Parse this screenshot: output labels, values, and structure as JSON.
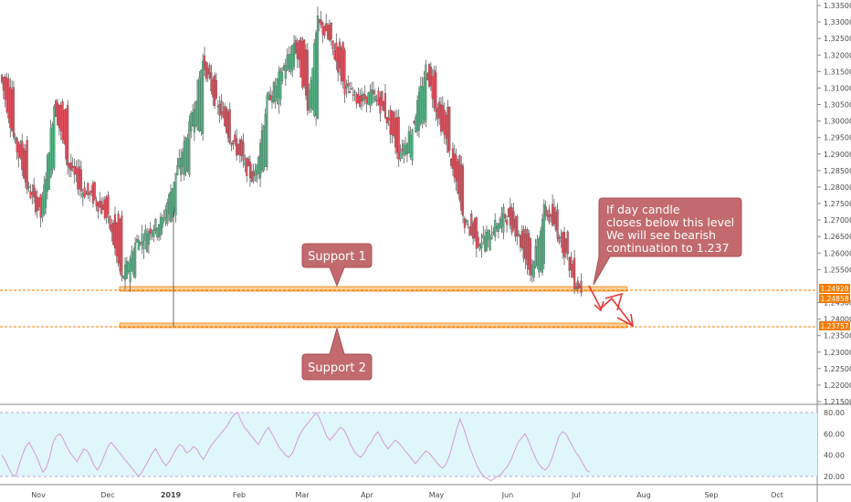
{
  "colors": {
    "up": "#53b987",
    "down": "#eb4d5c",
    "wick": "#4a4a4a",
    "support_zone": "#f7a541",
    "support_line": "#f57c00",
    "callout_fill": "#c26a6e",
    "callout_stroke": "#a84f54",
    "arrow": "#e53935",
    "rsi_line": "#d69bd4",
    "rsi_band": "#dff6fb"
  },
  "chart_data": {
    "type": "candlestick",
    "instrument_quote_currency_note": "",
    "x_tick_labels": [
      "Nov",
      "Dec",
      "2019",
      "Feb",
      "Mar",
      "Apr",
      "May",
      "Jun",
      "Jul",
      "Aug",
      "Sep",
      "Oct"
    ],
    "y_tick_labels": [
      "1.33500",
      "1.33000",
      "1.32500",
      "1.32000",
      "1.31500",
      "1.31000",
      "1.30500",
      "1.30000",
      "1.29500",
      "1.29000",
      "1.28500",
      "1.28000",
      "1.27500",
      "1.27000",
      "1.26500",
      "1.26000",
      "1.25500",
      "1.24500",
      "1.24000",
      "1.23500",
      "1.23000",
      "1.22500",
      "1.22000",
      "1.21500"
    ],
    "ylim": [
      1.213,
      1.3365
    ],
    "ohlc_daily_approx": [
      {
        "t": 0,
        "o": 1.312,
        "h": 1.316,
        "l": 1.3095,
        "c": 1.314
      },
      {
        "t": 8,
        "o": 1.31,
        "h": 1.311,
        "l": 1.29,
        "c": 1.295
      },
      {
        "t": 16,
        "o": 1.292,
        "h": 1.298,
        "l": 1.274,
        "c": 1.28
      },
      {
        "t": 24,
        "o": 1.277,
        "h": 1.29,
        "l": 1.27,
        "c": 1.271
      },
      {
        "t": 32,
        "o": 1.29,
        "h": 1.308,
        "l": 1.288,
        "c": 1.305
      },
      {
        "t": 40,
        "o": 1.305,
        "h": 1.308,
        "l": 1.284,
        "c": 1.287
      },
      {
        "t": 48,
        "o": 1.285,
        "h": 1.29,
        "l": 1.275,
        "c": 1.279
      },
      {
        "t": 56,
        "o": 1.28,
        "h": 1.284,
        "l": 1.272,
        "c": 1.276
      },
      {
        "t": 64,
        "o": 1.276,
        "h": 1.278,
        "l": 1.266,
        "c": 1.27
      },
      {
        "t": 72,
        "o": 1.27,
        "h": 1.272,
        "l": 1.25,
        "c": 1.252
      },
      {
        "t": 80,
        "o": 1.254,
        "h": 1.265,
        "l": 1.248,
        "c": 1.263
      },
      {
        "t": 88,
        "o": 1.262,
        "h": 1.272,
        "l": 1.26,
        "c": 1.267
      },
      {
        "t": 96,
        "o": 1.266,
        "h": 1.274,
        "l": 1.238,
        "c": 1.27
      },
      {
        "t": 104,
        "o": 1.272,
        "h": 1.286,
        "l": 1.27,
        "c": 1.284
      },
      {
        "t": 112,
        "o": 1.286,
        "h": 1.3,
        "l": 1.282,
        "c": 1.298
      },
      {
        "t": 120,
        "o": 1.298,
        "h": 1.32,
        "l": 1.296,
        "c": 1.318
      },
      {
        "t": 128,
        "o": 1.31,
        "h": 1.313,
        "l": 1.302,
        "c": 1.305
      },
      {
        "t": 136,
        "o": 1.304,
        "h": 1.306,
        "l": 1.292,
        "c": 1.295
      },
      {
        "t": 144,
        "o": 1.293,
        "h": 1.296,
        "l": 1.284,
        "c": 1.287
      },
      {
        "t": 150,
        "o": 1.286,
        "h": 1.288,
        "l": 1.278,
        "c": 1.282
      },
      {
        "t": 158,
        "o": 1.288,
        "h": 1.308,
        "l": 1.286,
        "c": 1.306
      },
      {
        "t": 166,
        "o": 1.306,
        "h": 1.316,
        "l": 1.3,
        "c": 1.314
      },
      {
        "t": 174,
        "o": 1.315,
        "h": 1.3345,
        "l": 1.312,
        "c": 1.324
      },
      {
        "t": 182,
        "o": 1.322,
        "h": 1.325,
        "l": 1.302,
        "c": 1.305
      },
      {
        "t": 188,
        "o": 1.3,
        "h": 1.334,
        "l": 1.298,
        "c": 1.33
      },
      {
        "t": 196,
        "o": 1.329,
        "h": 1.332,
        "l": 1.318,
        "c": 1.323
      },
      {
        "t": 204,
        "o": 1.322,
        "h": 1.324,
        "l": 1.308,
        "c": 1.31
      },
      {
        "t": 212,
        "o": 1.31,
        "h": 1.314,
        "l": 1.304,
        "c": 1.306
      },
      {
        "t": 220,
        "o": 1.306,
        "h": 1.312,
        "l": 1.302,
        "c": 1.308
      },
      {
        "t": 228,
        "o": 1.307,
        "h": 1.309,
        "l": 1.3,
        "c": 1.302
      },
      {
        "t": 236,
        "o": 1.3,
        "h": 1.302,
        "l": 1.288,
        "c": 1.29
      },
      {
        "t": 244,
        "o": 1.29,
        "h": 1.3,
        "l": 1.287,
        "c": 1.298
      },
      {
        "t": 252,
        "o": 1.299,
        "h": 1.318,
        "l": 1.297,
        "c": 1.316
      },
      {
        "t": 258,
        "o": 1.314,
        "h": 1.315,
        "l": 1.302,
        "c": 1.304
      },
      {
        "t": 266,
        "o": 1.303,
        "h": 1.305,
        "l": 1.288,
        "c": 1.29
      },
      {
        "t": 274,
        "o": 1.288,
        "h": 1.29,
        "l": 1.268,
        "c": 1.27
      },
      {
        "t": 282,
        "o": 1.27,
        "h": 1.272,
        "l": 1.26,
        "c": 1.263
      },
      {
        "t": 290,
        "o": 1.262,
        "h": 1.269,
        "l": 1.256,
        "c": 1.266
      },
      {
        "t": 298,
        "o": 1.267,
        "h": 1.276,
        "l": 1.264,
        "c": 1.272
      },
      {
        "t": 306,
        "o": 1.272,
        "h": 1.274,
        "l": 1.264,
        "c": 1.266
      },
      {
        "t": 314,
        "o": 1.266,
        "h": 1.268,
        "l": 1.252,
        "c": 1.254
      },
      {
        "t": 322,
        "o": 1.255,
        "h": 1.278,
        "l": 1.253,
        "c": 1.273
      },
      {
        "t": 330,
        "o": 1.273,
        "h": 1.275,
        "l": 1.264,
        "c": 1.266
      },
      {
        "t": 336,
        "o": 1.266,
        "h": 1.268,
        "l": 1.256,
        "c": 1.258
      },
      {
        "t": 340,
        "o": 1.256,
        "h": 1.257,
        "l": 1.25,
        "c": 1.251
      },
      {
        "t": 344,
        "o": 1.251,
        "h": 1.252,
        "l": 1.2485,
        "c": 1.249
      }
    ],
    "annotations": [
      {
        "label": "Support 1",
        "level": 1.2493
      },
      {
        "label": "Support 2",
        "level": 1.2376
      }
    ],
    "price_tags": [
      "1.24928",
      "1.24858",
      "1.23757"
    ],
    "callout_lines": [
      "If day candle",
      "closes below this level",
      "We will see bearish",
      "continuation to 1.237"
    ],
    "rsi": {
      "y_tick_labels": [
        "80.00",
        "60.00",
        "40.00",
        "20.00"
      ],
      "upper": 80,
      "lower": 20,
      "ylim": [
        15,
        82
      ],
      "values": [
        40,
        35,
        28,
        22,
        20,
        30,
        40,
        48,
        52,
        46,
        40,
        32,
        24,
        28,
        38,
        52,
        58,
        60,
        55,
        48,
        42,
        38,
        34,
        40,
        46,
        44,
        38,
        30,
        26,
        32,
        40,
        48,
        52,
        48,
        44,
        40,
        36,
        32,
        28,
        24,
        20,
        24,
        30,
        36,
        42,
        46,
        40,
        34,
        30,
        34,
        40,
        46,
        50,
        48,
        42,
        44,
        48,
        46,
        40,
        36,
        42,
        48,
        52,
        56,
        60,
        64,
        68,
        74,
        78,
        80,
        72,
        66,
        62,
        58,
        54,
        50,
        56,
        62,
        66,
        60,
        54,
        48,
        44,
        40,
        38,
        42,
        50,
        58,
        64,
        68,
        72,
        76,
        80,
        74,
        66,
        58,
        54,
        58,
        62,
        66,
        64,
        58,
        50,
        44,
        40,
        38,
        42,
        48,
        52,
        58,
        62,
        56,
        50,
        46,
        50,
        54,
        52,
        48,
        44,
        40,
        36,
        32,
        36,
        40,
        44,
        42,
        38,
        34,
        30,
        28,
        32,
        40,
        52,
        64,
        74,
        66,
        56,
        46,
        38,
        30,
        24,
        20,
        18,
        16,
        18,
        20,
        22,
        26,
        30,
        36,
        44,
        52,
        56,
        60,
        54,
        46,
        38,
        32,
        28,
        26,
        30,
        38,
        48,
        58,
        62,
        60,
        54,
        48,
        42,
        38,
        32,
        26,
        24
      ]
    }
  }
}
